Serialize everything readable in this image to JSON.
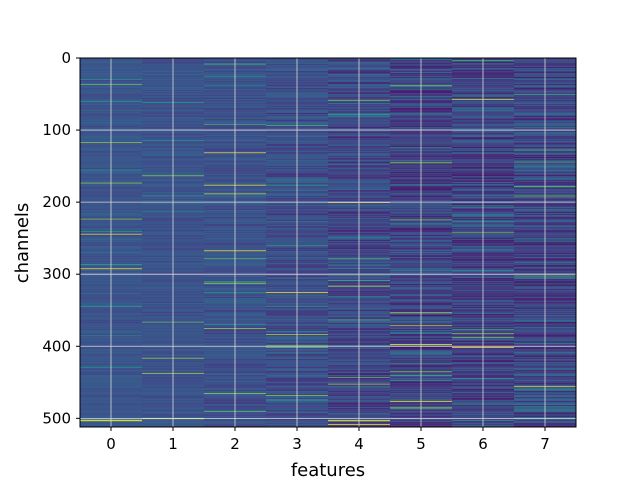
{
  "chart_data": {
    "type": "heatmap",
    "title": "",
    "xlabel": "features",
    "ylabel": "channels",
    "x_categories": [
      "0",
      "1",
      "2",
      "3",
      "4",
      "5",
      "6",
      "7"
    ],
    "y_ticks": [
      "0",
      "100",
      "200",
      "300",
      "400",
      "500"
    ],
    "y_tick_values": [
      0,
      100,
      200,
      300,
      400,
      500
    ],
    "n_rows": 512,
    "n_cols": 8,
    "ylim": [
      512,
      0
    ],
    "grid": true,
    "colormap": "viridis",
    "colors": {
      "grid": "#d9d9d9",
      "low": "#440154",
      "mid": "#21918c",
      "high": "#fde725"
    },
    "column_stats": [
      {
        "feature": "0",
        "mean": 0.33,
        "spread": 0.06
      },
      {
        "feature": "1",
        "mean": 0.32,
        "spread": 0.07
      },
      {
        "feature": "2",
        "mean": 0.31,
        "spread": 0.09
      },
      {
        "feature": "3",
        "mean": 0.3,
        "spread": 0.12
      },
      {
        "feature": "4",
        "mean": 0.27,
        "spread": 0.15
      },
      {
        "feature": "5",
        "mean": 0.26,
        "spread": 0.18
      },
      {
        "feature": "6",
        "mean": 0.26,
        "spread": 0.19
      },
      {
        "feature": "7",
        "mean": 0.27,
        "spread": 0.2
      }
    ]
  }
}
